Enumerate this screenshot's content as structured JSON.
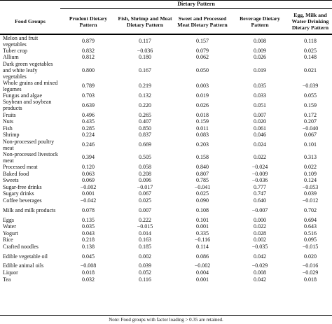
{
  "table": {
    "group_header": "Dietary Pattern",
    "columns": [
      "Food Groups",
      "Prudent Dietary Pattern",
      "Fish, Shrimp and Meat Dietary Pattern",
      "Sweet and Processed Meat Dietary Pattern",
      "Beverage Dietary Pattern",
      "Egg, Milk and Water Drinking Dietary Pattern"
    ],
    "rows": [
      {
        "food": "Melon and fruit vegetables",
        "v": [
          "0.879",
          "0.117",
          "0.157",
          "0.008",
          "0.118"
        ]
      },
      {
        "food": "Tuber crop",
        "v": [
          "0.832",
          "−0.036",
          "0.079",
          "0.009",
          "0.025"
        ]
      },
      {
        "food": "Allium",
        "v": [
          "0.812",
          "0.180",
          "0.062",
          "0.026",
          "0.148"
        ]
      },
      {
        "food": "Dark green vegetables and white leafy vegetables",
        "v": [
          "0.800",
          "0.167",
          "0.050",
          "0.019",
          "0.021"
        ]
      },
      {
        "food": "Whole grains and mixed legumes",
        "v": [
          "0.789",
          "0.219",
          "0.003",
          "0.035",
          "−0.039"
        ]
      },
      {
        "food": "Fungus and algae",
        "v": [
          "0.703",
          "0.132",
          "0.019",
          "0.033",
          "0.055"
        ]
      },
      {
        "food": "Soybean and soybean products",
        "v": [
          "0.639",
          "0.220",
          "0.026",
          "0.051",
          "0.159"
        ]
      },
      {
        "food": "Fruits",
        "v": [
          "0.496",
          "0.265",
          "0.018",
          "0.007",
          "0.172"
        ]
      },
      {
        "food": "Nuts",
        "v": [
          "0.435",
          "0.407",
          "0.159",
          "0.020",
          "0.207"
        ]
      },
      {
        "food": "Fish",
        "v": [
          "0.285",
          "0.850",
          "0.011",
          "0.061",
          "−0.040"
        ]
      },
      {
        "food": "Shrimp",
        "v": [
          "0.224",
          "0.837",
          "0.083",
          "0.046",
          "0.067"
        ]
      },
      {
        "food": "Non-processed poultry meat",
        "v": [
          "0.246",
          "0.669",
          "0.203",
          "0.024",
          "0.101"
        ]
      },
      {
        "food": "Non-processed livestock meat",
        "v": [
          "0.394",
          "0.505",
          "0.158",
          "0.022",
          "0.313"
        ]
      },
      {
        "food": "Processed meat",
        "v": [
          "0.120",
          "0.058",
          "0.840",
          "−0.024",
          "0.022"
        ]
      },
      {
        "food": "Baked food",
        "v": [
          "0.063",
          "0.208",
          "0.807",
          "−0.009",
          "0.109"
        ]
      },
      {
        "food": "Sweets",
        "v": [
          "0.069",
          "0.096",
          "0.785",
          "−0.036",
          "0.124"
        ]
      },
      {
        "food": "Sugar-free drinks",
        "v": [
          "−0.002",
          "−0.017",
          "−0.041",
          "0.777",
          "−0.053"
        ]
      },
      {
        "food": "Sugary drinks",
        "v": [
          "0.001",
          "0.067",
          "0.025",
          "0.747",
          "0.039"
        ]
      },
      {
        "food": "Coffee beverages",
        "v": [
          "−0.042",
          "0.025",
          "0.090",
          "0.640",
          "−0.012"
        ]
      },
      {
        "food": "Milk and milk products",
        "v": [
          "0.078",
          "0.007",
          "0.108",
          "−0.007",
          "0.702"
        ]
      },
      {
        "food": "Eggs",
        "v": [
          "0.135",
          "0.222",
          "0.101",
          "0.000",
          "0.694"
        ]
      },
      {
        "food": "Water",
        "v": [
          "0.035",
          "−0.015",
          "0.001",
          "0.022",
          "0.643"
        ]
      },
      {
        "food": "Yogurt",
        "v": [
          "0.043",
          "0.014",
          "0.335",
          "0.028",
          "0.516"
        ]
      },
      {
        "food": "Rice",
        "v": [
          "0.218",
          "0.163",
          "−0.116",
          "0.002",
          "0.095"
        ]
      },
      {
        "food": "Crafted noodles",
        "v": [
          "0.138",
          "0.185",
          "0.114",
          "−0.035",
          "−0.015"
        ]
      },
      {
        "food": "Edible vegetable oil",
        "v": [
          "0.045",
          "0.002",
          "0.086",
          "0.042",
          "0.020"
        ]
      },
      {
        "food": "Edible animal oils",
        "v": [
          "−0.008",
          "0.039",
          "−0.002",
          "−0.029",
          "−0.016"
        ]
      },
      {
        "food": "Liquor",
        "v": [
          "0.018",
          "0.052",
          "0.004",
          "0.008",
          "−0.029"
        ]
      },
      {
        "food": "Tea",
        "v": [
          "0.032",
          "0.116",
          "0.001",
          "0.042",
          "0.018"
        ]
      }
    ],
    "note": "Note: Food groups with factor loading > 0.35 are retained."
  }
}
